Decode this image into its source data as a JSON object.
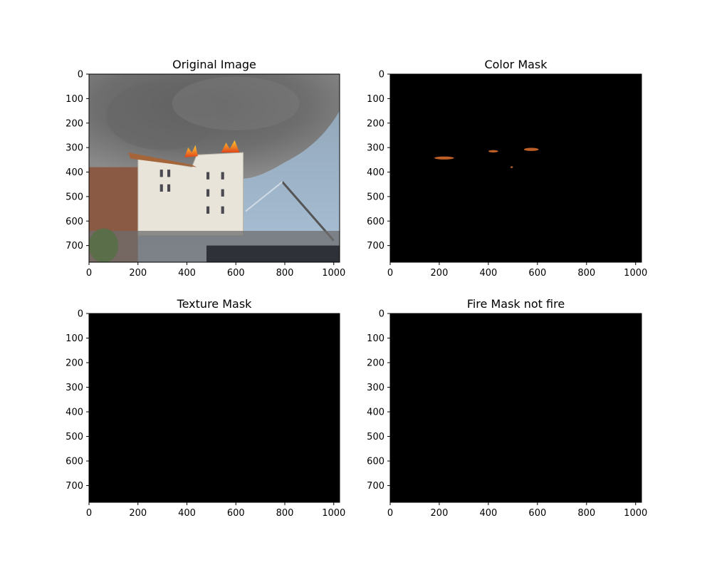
{
  "figure": {
    "background": "#ffffff",
    "panels": [
      {
        "title": "Original Image",
        "content": "photo",
        "xticks": [
          "0",
          "200",
          "400",
          "600",
          "800",
          "1000"
        ],
        "yticks": [
          "0",
          "100",
          "200",
          "300",
          "400",
          "500",
          "600",
          "700"
        ]
      },
      {
        "title": "Color Mask",
        "content": "color-mask",
        "xticks": [
          "0",
          "200",
          "400",
          "600",
          "800",
          "1000"
        ],
        "yticks": [
          "0",
          "100",
          "200",
          "300",
          "400",
          "500",
          "600",
          "700"
        ]
      },
      {
        "title": "Texture Mask",
        "content": "black",
        "xticks": [
          "0",
          "200",
          "400",
          "600",
          "800",
          "1000"
        ],
        "yticks": [
          "0",
          "100",
          "200",
          "300",
          "400",
          "500",
          "600",
          "700"
        ]
      },
      {
        "title": "Fire Mask not fire",
        "content": "black",
        "xticks": [
          "0",
          "200",
          "400",
          "600",
          "800",
          "1000"
        ],
        "yticks": [
          "0",
          "100",
          "200",
          "300",
          "400",
          "500",
          "600",
          "700"
        ]
      }
    ]
  },
  "chart_data": [
    {
      "type": "image",
      "title": "Original Image",
      "xlim": [
        0,
        1024
      ],
      "ylim": [
        768,
        0
      ],
      "xticks": [
        0,
        200,
        400,
        600,
        800,
        1000
      ],
      "yticks": [
        0,
        100,
        200,
        300,
        400,
        500,
        600,
        700
      ]
    },
    {
      "type": "image",
      "title": "Color Mask",
      "xlim": [
        0,
        1024
      ],
      "ylim": [
        768,
        0
      ],
      "xticks": [
        0,
        200,
        400,
        600,
        800,
        1000
      ],
      "yticks": [
        0,
        100,
        200,
        300,
        400,
        500,
        600,
        700
      ],
      "fire_pixel_regions": [
        {
          "x": [
            180,
            260
          ],
          "y": [
            330,
            355
          ]
        },
        {
          "x": [
            400,
            440
          ],
          "y": [
            305,
            325
          ]
        },
        {
          "x": [
            545,
            605
          ],
          "y": [
            295,
            320
          ]
        },
        {
          "x": [
            490,
            500
          ],
          "y": [
            375,
            385
          ]
        }
      ]
    },
    {
      "type": "image",
      "title": "Texture Mask",
      "xlim": [
        0,
        1024
      ],
      "ylim": [
        768,
        0
      ],
      "xticks": [
        0,
        200,
        400,
        600,
        800,
        1000
      ],
      "yticks": [
        0,
        100,
        200,
        300,
        400,
        500,
        600,
        700
      ],
      "fill": "#000000"
    },
    {
      "type": "image",
      "title": "Fire Mask not fire",
      "xlim": [
        0,
        1024
      ],
      "ylim": [
        768,
        0
      ],
      "xticks": [
        0,
        200,
        400,
        600,
        800,
        1000
      ],
      "yticks": [
        0,
        100,
        200,
        300,
        400,
        500,
        600,
        700
      ],
      "fill": "#000000"
    }
  ]
}
